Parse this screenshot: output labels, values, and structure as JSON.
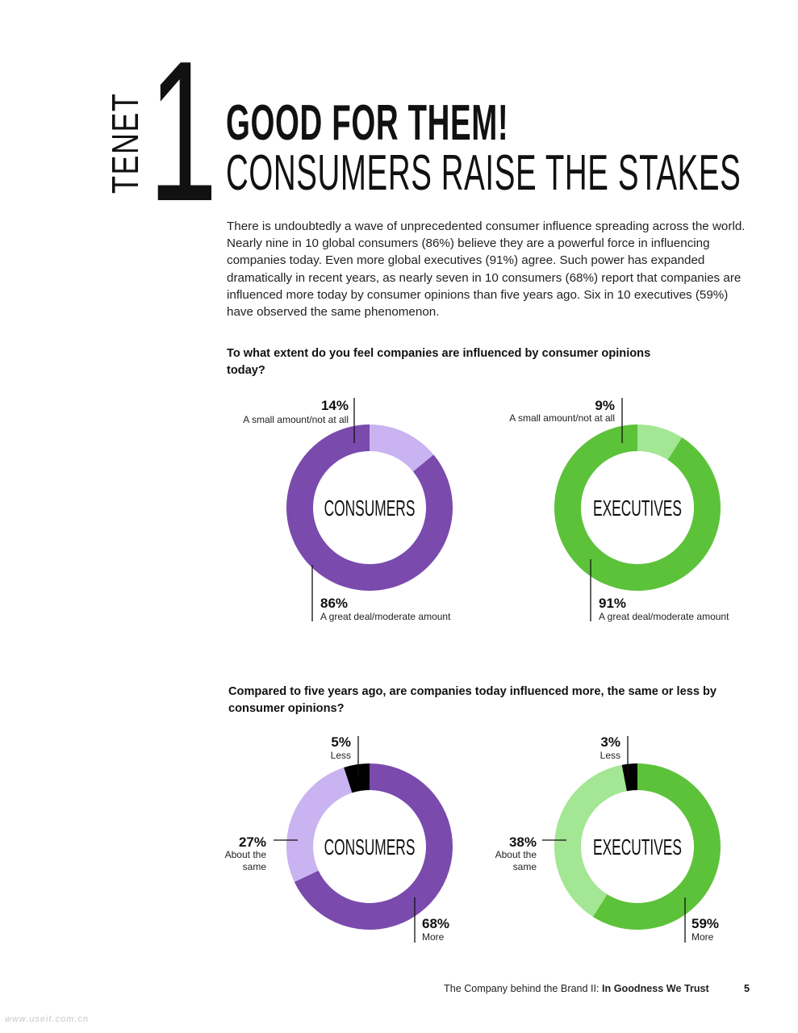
{
  "header": {
    "tenet_word": "TENET",
    "tenet_number": "1",
    "headline_line1": "GOOD FOR THEM!",
    "headline_line2": "CONSUMERS RAISE THE STAKES"
  },
  "intro": "There is undoubtedly a wave of unprecedented consumer influence spreading across the world. Nearly nine in 10 global consumers (86%) believe they are a powerful force in influencing companies today. Even more global executives (91%) agree. Such power has expanded dramatically in recent years, as nearly seven in 10 consumers (68%) report that companies are influenced more today by consumer opinions than five years ago. Six in 10 executives (59%) have observed the same phenomenon.",
  "colors": {
    "purple_dark": "#7a4aad",
    "purple_light": "#c9b3f0",
    "green_dark": "#5cc23a",
    "green_light": "#a3e693",
    "black": "#000000"
  },
  "chart_data": [
    {
      "type": "pie",
      "style": "donut",
      "title": "To what extent do you feel companies are influenced by consumer opinions today?",
      "center_label": "CONSUMERS",
      "slices": [
        {
          "pct_label": "14%",
          "label": "A small amount/not at all",
          "value": 14,
          "color": "#c9b3f0"
        },
        {
          "pct_label": "86%",
          "label": "A great deal/moderate amount",
          "value": 86,
          "color": "#7a4aad"
        }
      ]
    },
    {
      "type": "pie",
      "style": "donut",
      "title": "To what extent do you feel companies are influenced by consumer opinions today?",
      "center_label": "EXECUTIVES",
      "slices": [
        {
          "pct_label": "9%",
          "label": "A small amount/not at all",
          "value": 9,
          "color": "#a3e693"
        },
        {
          "pct_label": "91%",
          "label": "A great deal/moderate amount",
          "value": 91,
          "color": "#5cc23a"
        }
      ]
    },
    {
      "type": "pie",
      "style": "donut",
      "title": "Compared to five years ago, are companies today influenced more, the same or less by consumer opinions?",
      "center_label": "CONSUMERS",
      "slices": [
        {
          "pct_label": "68%",
          "label": "More",
          "value": 68,
          "color": "#7a4aad"
        },
        {
          "pct_label": "27%",
          "label": "About the same",
          "label_lines": [
            "About the",
            "same"
          ],
          "value": 27,
          "color": "#c9b3f0"
        },
        {
          "pct_label": "5%",
          "label": "Less",
          "value": 5,
          "color": "#000000"
        }
      ]
    },
    {
      "type": "pie",
      "style": "donut",
      "title": "Compared to five years ago, are companies today influenced more, the same or less by consumer opinions?",
      "center_label": "EXECUTIVES",
      "slices": [
        {
          "pct_label": "59%",
          "label": "More",
          "value": 59,
          "color": "#5cc23a"
        },
        {
          "pct_label": "38%",
          "label": "About the same",
          "label_lines": [
            "About the",
            "same"
          ],
          "value": 38,
          "color": "#a3e693"
        },
        {
          "pct_label": "3%",
          "label": "Less",
          "value": 3,
          "color": "#000000"
        }
      ]
    }
  ],
  "questions": {
    "q1": "To what extent do you feel companies are influenced by consumer opinions today?",
    "q2": "Compared to five years ago, are companies today influenced more, the same or less by consumer opinions?"
  },
  "footer": {
    "publication": "The Company behind the Brand II: ",
    "publication_bold": "In Goodness We Trust",
    "page_number": "5"
  },
  "watermark": "www.useit.com.cn"
}
